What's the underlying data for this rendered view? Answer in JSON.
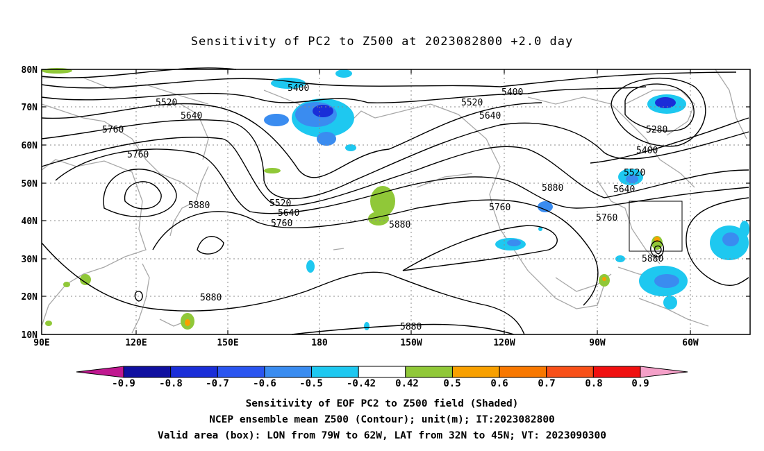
{
  "title": "Sensitivity of PC2 to Z500 at 2023082800 +2.0 day",
  "map": {
    "lat_labels": [
      "80N",
      "70N",
      "60N",
      "50N",
      "40N",
      "30N",
      "20N",
      "10N"
    ],
    "lon_labels": [
      "90E",
      "120E",
      "150E",
      "180",
      "150W",
      "120W",
      "90W",
      "60W"
    ],
    "contour_labels": [
      {
        "text": "5400"
      },
      {
        "text": "5400"
      },
      {
        "text": "5520"
      },
      {
        "text": "5520"
      },
      {
        "text": "5640"
      },
      {
        "text": "5640"
      },
      {
        "text": "5760"
      },
      {
        "text": "5760"
      },
      {
        "text": "5880"
      },
      {
        "text": "5520"
      },
      {
        "text": "5640"
      },
      {
        "text": "5760"
      },
      {
        "text": "5880"
      },
      {
        "text": "5760"
      },
      {
        "text": "5880"
      },
      {
        "text": "5280"
      },
      {
        "text": "5400"
      },
      {
        "text": "5520"
      },
      {
        "text": "5640"
      },
      {
        "text": "5760"
      },
      {
        "text": "5880"
      },
      {
        "text": "5880"
      },
      {
        "text": "5880"
      }
    ]
  },
  "colorbar": {
    "labels": [
      "-0.9",
      "-0.8",
      "-0.7",
      "-0.6",
      "-0.5",
      "-0.42",
      "0.42",
      "0.5",
      "0.6",
      "0.7",
      "0.8",
      "0.9"
    ],
    "colors": [
      "#1010a0",
      "#1a2ed8",
      "#2a55f0",
      "#3a8cf0",
      "#1ec8f0",
      "#ffffff",
      "#90c838",
      "#f8a000",
      "#f87800",
      "#f85018",
      "#f01010"
    ],
    "low_extend_color": "#c01890",
    "high_extend_color": "#f4a0c8"
  },
  "captions": [
    "Sensitivity of EOF PC2 to Z500 field (Shaded)",
    "NCEP ensemble mean Z500 (Contour); unit(m); IT:2023082800",
    "Valid area (box): LON from 79W to 62W, LAT from 32N to 45N; VT: 2023090300"
  ]
}
